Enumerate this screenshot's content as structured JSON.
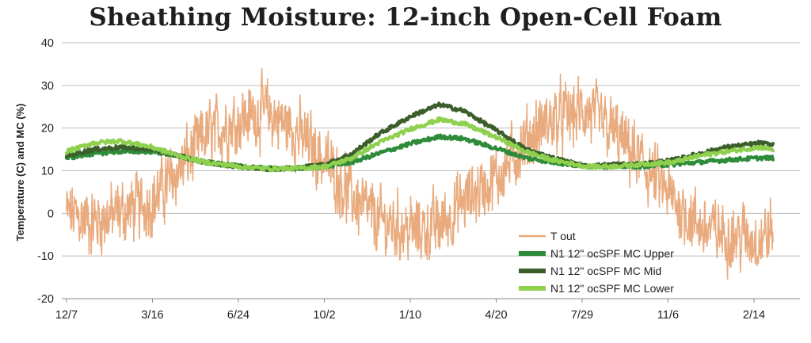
{
  "chart_data": {
    "type": "line",
    "title": "Sheathing Moisture: 12-inch Open-Cell Foam",
    "ylabel": "Temperature (C) and MC (%)",
    "xlabel": "",
    "ylim": [
      -20,
      40
    ],
    "yticks": [
      "40",
      "30",
      "20",
      "10",
      "0",
      "-10",
      "-20"
    ],
    "xticks": [
      "12/7",
      "3/16",
      "6/24",
      "10/2",
      "1/10",
      "4/20",
      "7/29",
      "11/6",
      "2/14"
    ],
    "grid": true,
    "legend_position": "lower-right",
    "series": [
      {
        "name": "T out",
        "color": "#E8A777",
        "x": [
          "12/7",
          "1/7",
          "2/7",
          "3/16",
          "4/15",
          "5/15",
          "6/24",
          "7/24",
          "8/24",
          "10/2",
          "11/1",
          "12/1",
          "1/10",
          "2/10",
          "3/10",
          "4/20",
          "5/20",
          "6/20",
          "7/29",
          "8/29",
          "9/29",
          "11/6",
          "12/6",
          "1/6",
          "2/14",
          "3/1"
        ],
        "values": [
          0,
          -2,
          0,
          3,
          10,
          18,
          22,
          24,
          20,
          12,
          4,
          -2,
          -4,
          -3,
          3,
          9,
          17,
          22,
          24,
          19,
          12,
          3,
          -3,
          -5,
          -6,
          -4
        ],
        "amplitude": 9
      },
      {
        "name": "N1 12\" ocSPF MC Upper",
        "color": "#2E8B3A",
        "x": [
          "12/7",
          "1/7",
          "2/7",
          "3/16",
          "4/15",
          "5/15",
          "6/24",
          "7/24",
          "8/24",
          "10/2",
          "11/1",
          "12/1",
          "1/10",
          "2/10",
          "3/10",
          "4/20",
          "5/20",
          "6/20",
          "7/29",
          "8/29",
          "9/29",
          "11/6",
          "12/6",
          "1/6",
          "2/14",
          "3/1"
        ],
        "values": [
          13,
          14,
          14.5,
          14.5,
          13.5,
          12,
          11,
          10.5,
          10.5,
          11,
          12,
          14,
          16.5,
          18,
          17.5,
          15,
          13,
          12,
          11,
          11,
          11,
          11.5,
          12,
          12.5,
          13,
          13
        ]
      },
      {
        "name": "N1 12\" ocSPF MC Mid",
        "color": "#3B5E2B",
        "x": [
          "12/7",
          "1/7",
          "2/7",
          "3/16",
          "4/15",
          "5/15",
          "6/24",
          "7/24",
          "8/24",
          "10/2",
          "11/1",
          "12/1",
          "1/10",
          "2/10",
          "3/10",
          "4/20",
          "5/20",
          "6/20",
          "7/29",
          "8/29",
          "9/29",
          "11/6",
          "12/6",
          "1/6",
          "2/14",
          "3/1"
        ],
        "values": [
          13.5,
          15,
          15.5,
          15,
          13.5,
          12,
          11,
          10.5,
          10.5,
          11.5,
          14,
          18.5,
          23,
          25.5,
          24,
          19,
          15,
          13,
          11,
          11.5,
          11.5,
          12.5,
          14,
          15.5,
          16.5,
          16
        ]
      },
      {
        "name": "N1 12\" ocSPF MC Lower",
        "color": "#8FD14F",
        "x": [
          "12/7",
          "1/7",
          "2/7",
          "3/16",
          "4/15",
          "5/15",
          "6/24",
          "7/24",
          "8/24",
          "10/2",
          "11/1",
          "12/1",
          "1/10",
          "2/10",
          "3/10",
          "4/20",
          "5/20",
          "6/20",
          "7/29",
          "8/29",
          "9/29",
          "11/6",
          "12/6",
          "1/6",
          "2/14",
          "3/1"
        ],
        "values": [
          14.5,
          16.5,
          17,
          15.5,
          13.5,
          12,
          11,
          10.5,
          10.5,
          11,
          13,
          16.5,
          20,
          22,
          21,
          17.5,
          14.5,
          12.5,
          11,
          11,
          11.5,
          12,
          13.5,
          14.5,
          15.5,
          15
        ]
      }
    ]
  }
}
